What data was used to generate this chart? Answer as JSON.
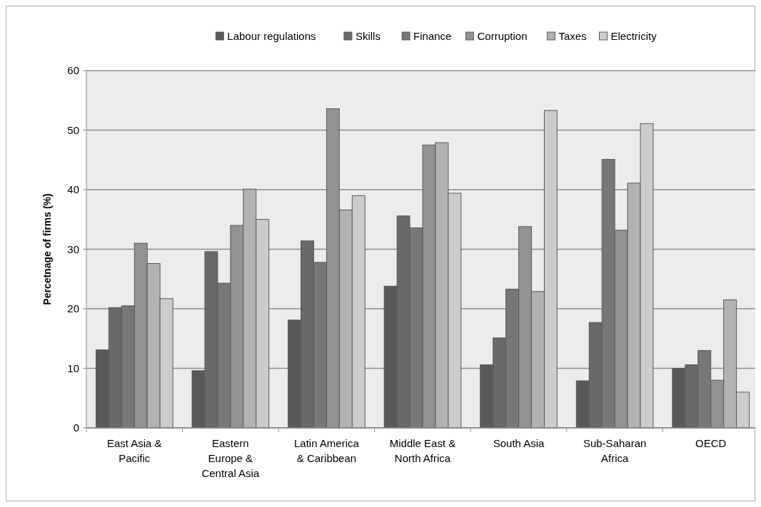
{
  "chart_data": {
    "type": "bar",
    "ylabel": "Percetnage of firms (%)",
    "categories": [
      "East Asia & Pacific",
      "Eastern Europe & Central Asia",
      "Latin America & Caribbean",
      "Middle East & North Africa",
      "South Asia",
      "Sub-Saharan Africa",
      "OECD"
    ],
    "series": [
      {
        "name": "Labour regulations",
        "color": "#595959",
        "values": [
          13.1,
          9.6,
          18.1,
          23.8,
          10.6,
          7.9,
          10
        ]
      },
      {
        "name": "Skills",
        "color": "#696969",
        "values": [
          20.2,
          29.6,
          31.4,
          35.6,
          15.1,
          17.7,
          10.6
        ]
      },
      {
        "name": "Finance",
        "color": "#777777",
        "values": [
          20.5,
          24.3,
          27.8,
          33.6,
          23.3,
          45.1,
          13
        ]
      },
      {
        "name": "Corruption",
        "color": "#929292",
        "values": [
          31,
          34,
          53.6,
          47.5,
          33.8,
          33.2,
          8
        ]
      },
      {
        "name": "Taxes",
        "color": "#b2b2b2",
        "values": [
          27.6,
          40.1,
          36.6,
          47.9,
          22.9,
          41.1,
          21.5
        ]
      },
      {
        "name": "Electricity",
        "color": "#cccccc",
        "values": [
          21.7,
          35,
          39,
          39.4,
          53.3,
          51.1,
          6
        ]
      }
    ],
    "ylim": [
      0,
      60
    ],
    "yticks": [
      0,
      10,
      20,
      30,
      40,
      50,
      60
    ],
    "grid": "y",
    "legend": "top"
  }
}
